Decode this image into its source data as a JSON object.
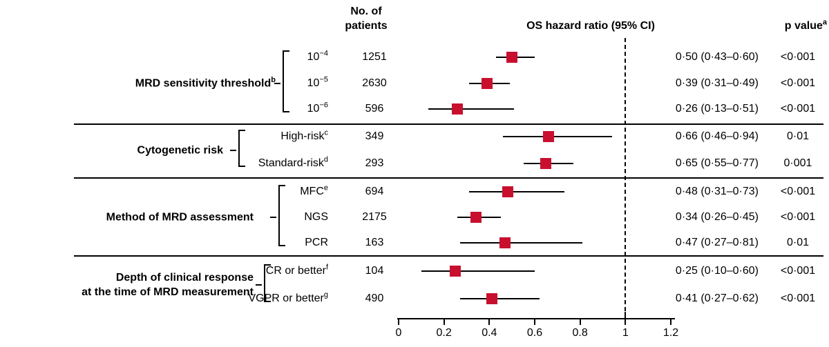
{
  "header": {
    "patients_line1": "No. of",
    "patients_line2": "patients",
    "hazard_col": "OS hazard ratio (95% CI)",
    "pvalue_col": "p value",
    "pvalue_sup": "a"
  },
  "colors": {
    "marker": "#C8102E",
    "line": "#000000",
    "text": "#000000"
  },
  "chart_data": {
    "type": "forest",
    "x_axis": {
      "range": [
        0,
        1.2
      ],
      "ticks": [
        0,
        0.2,
        0.4,
        0.6,
        0.8,
        1,
        1.2
      ],
      "tick_labels": [
        "0",
        "0.2",
        "0.4",
        "0.6",
        "0.8",
        "1",
        "1.2"
      ],
      "reference_line": 1
    },
    "groups": [
      {
        "label_lines": [
          "MRD sensitivity threshold"
        ],
        "label_sup": "b",
        "rows": [
          {
            "label": "10",
            "label_sup": "−4",
            "patients": "1251",
            "hr": 0.5,
            "lo": 0.43,
            "hi": 0.6,
            "hr_ci": "0·50 (0·43–0·60)",
            "p": "<0·001"
          },
          {
            "label": "10",
            "label_sup": "−5",
            "patients": "2630",
            "hr": 0.39,
            "lo": 0.31,
            "hi": 0.49,
            "hr_ci": "0·39 (0·31–0·49)",
            "p": "<0·001"
          },
          {
            "label": "10",
            "label_sup": "−6",
            "patients": "596",
            "hr": 0.26,
            "lo": 0.13,
            "hi": 0.51,
            "hr_ci": "0·26 (0·13–0·51)",
            "p": "<0·001"
          }
        ]
      },
      {
        "label_lines": [
          "Cytogenetic risk"
        ],
        "label_sup": "",
        "rows": [
          {
            "label": "High-risk",
            "label_sup": "c",
            "patients": "349",
            "hr": 0.66,
            "lo": 0.46,
            "hi": 0.94,
            "hr_ci": "0·66 (0·46–0·94)",
            "p": "0·01"
          },
          {
            "label": "Standard-risk",
            "label_sup": "d",
            "patients": "293",
            "hr": 0.65,
            "lo": 0.55,
            "hi": 0.77,
            "hr_ci": "0·65 (0·55–0·77)",
            "p": "0·001"
          }
        ]
      },
      {
        "label_lines": [
          "Method of MRD assessment"
        ],
        "label_sup": "",
        "rows": [
          {
            "label": "MFC",
            "label_sup": "e",
            "patients": "694",
            "hr": 0.48,
            "lo": 0.31,
            "hi": 0.73,
            "hr_ci": "0·48 (0·31–0·73)",
            "p": "<0·001"
          },
          {
            "label": "NGS",
            "label_sup": "",
            "patients": "2175",
            "hr": 0.34,
            "lo": 0.26,
            "hi": 0.45,
            "hr_ci": "0·34 (0·26–0·45)",
            "p": "<0·001"
          },
          {
            "label": "PCR",
            "label_sup": "",
            "patients": "163",
            "hr": 0.47,
            "lo": 0.27,
            "hi": 0.81,
            "hr_ci": "0·47 (0·27–0·81)",
            "p": "0·01"
          }
        ]
      },
      {
        "label_lines": [
          "Depth of clinical response",
          "at the time of MRD measurement"
        ],
        "label_sup": "",
        "rows": [
          {
            "label": "CR or better",
            "label_sup": "f",
            "patients": "104",
            "hr": 0.25,
            "lo": 0.1,
            "hi": 0.6,
            "hr_ci": "0·25 (0·10–0·60)",
            "p": "<0·001"
          },
          {
            "label": "VGPR or better",
            "label_sup": "g",
            "patients": "490",
            "hr": 0.41,
            "lo": 0.27,
            "hi": 0.62,
            "hr_ci": "0·41 (0·27–0·62)",
            "p": "<0·001"
          }
        ]
      }
    ]
  }
}
